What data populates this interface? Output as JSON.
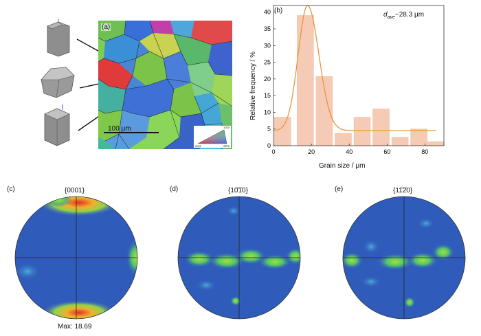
{
  "panel_a": {
    "label": "(a)",
    "scale_bar_label": "100 μm",
    "ipf_key": {
      "top": "10͞10",
      "left": "0001",
      "right": "2͞1͞10"
    },
    "colors": {
      "blue": "#3a6fd8",
      "green": "#7cc34a",
      "red": "#e0353a",
      "magenta": "#c13fa8",
      "cyan": "#3fc7d6",
      "teal": "#46b89a"
    }
  },
  "panel_b": {
    "label": "(b)",
    "annotation_prefix": "d",
    "annotation_sub": "ave",
    "annotation_value": "~28.3 μm"
  },
  "chart_data": {
    "type": "bar",
    "x": [
      5,
      17,
      27,
      37,
      47,
      57,
      67,
      77,
      86
    ],
    "values": [
      8.5,
      39,
      20.7,
      3.7,
      8.5,
      11,
      2.5,
      5,
      1.2
    ],
    "bar_width": 9,
    "xlabel": "Grain size / μm",
    "ylabel": "Relative frequency / %",
    "xlim": [
      0,
      90
    ],
    "ylim": [
      0,
      42
    ],
    "xticks": [
      0,
      20,
      40,
      60,
      80
    ],
    "yticks": [
      0,
      5,
      10,
      15,
      20,
      25,
      30,
      35,
      40
    ],
    "fit_curve": {
      "peak_x": 18,
      "peak_y": 42,
      "baseline": 4.5,
      "sigma_left": 5,
      "sigma_right": 6
    },
    "bar_color": "#f6cbb5",
    "curve_color": "#e8943a"
  },
  "pole_figures": [
    {
      "label": "(c)",
      "title": "{0001}",
      "footer": "Max: 18.69"
    },
    {
      "label": "(d)",
      "title": "{10͞10}",
      "footer": ""
    },
    {
      "label": "(e)",
      "title": "{11͞20}",
      "footer": ""
    }
  ]
}
